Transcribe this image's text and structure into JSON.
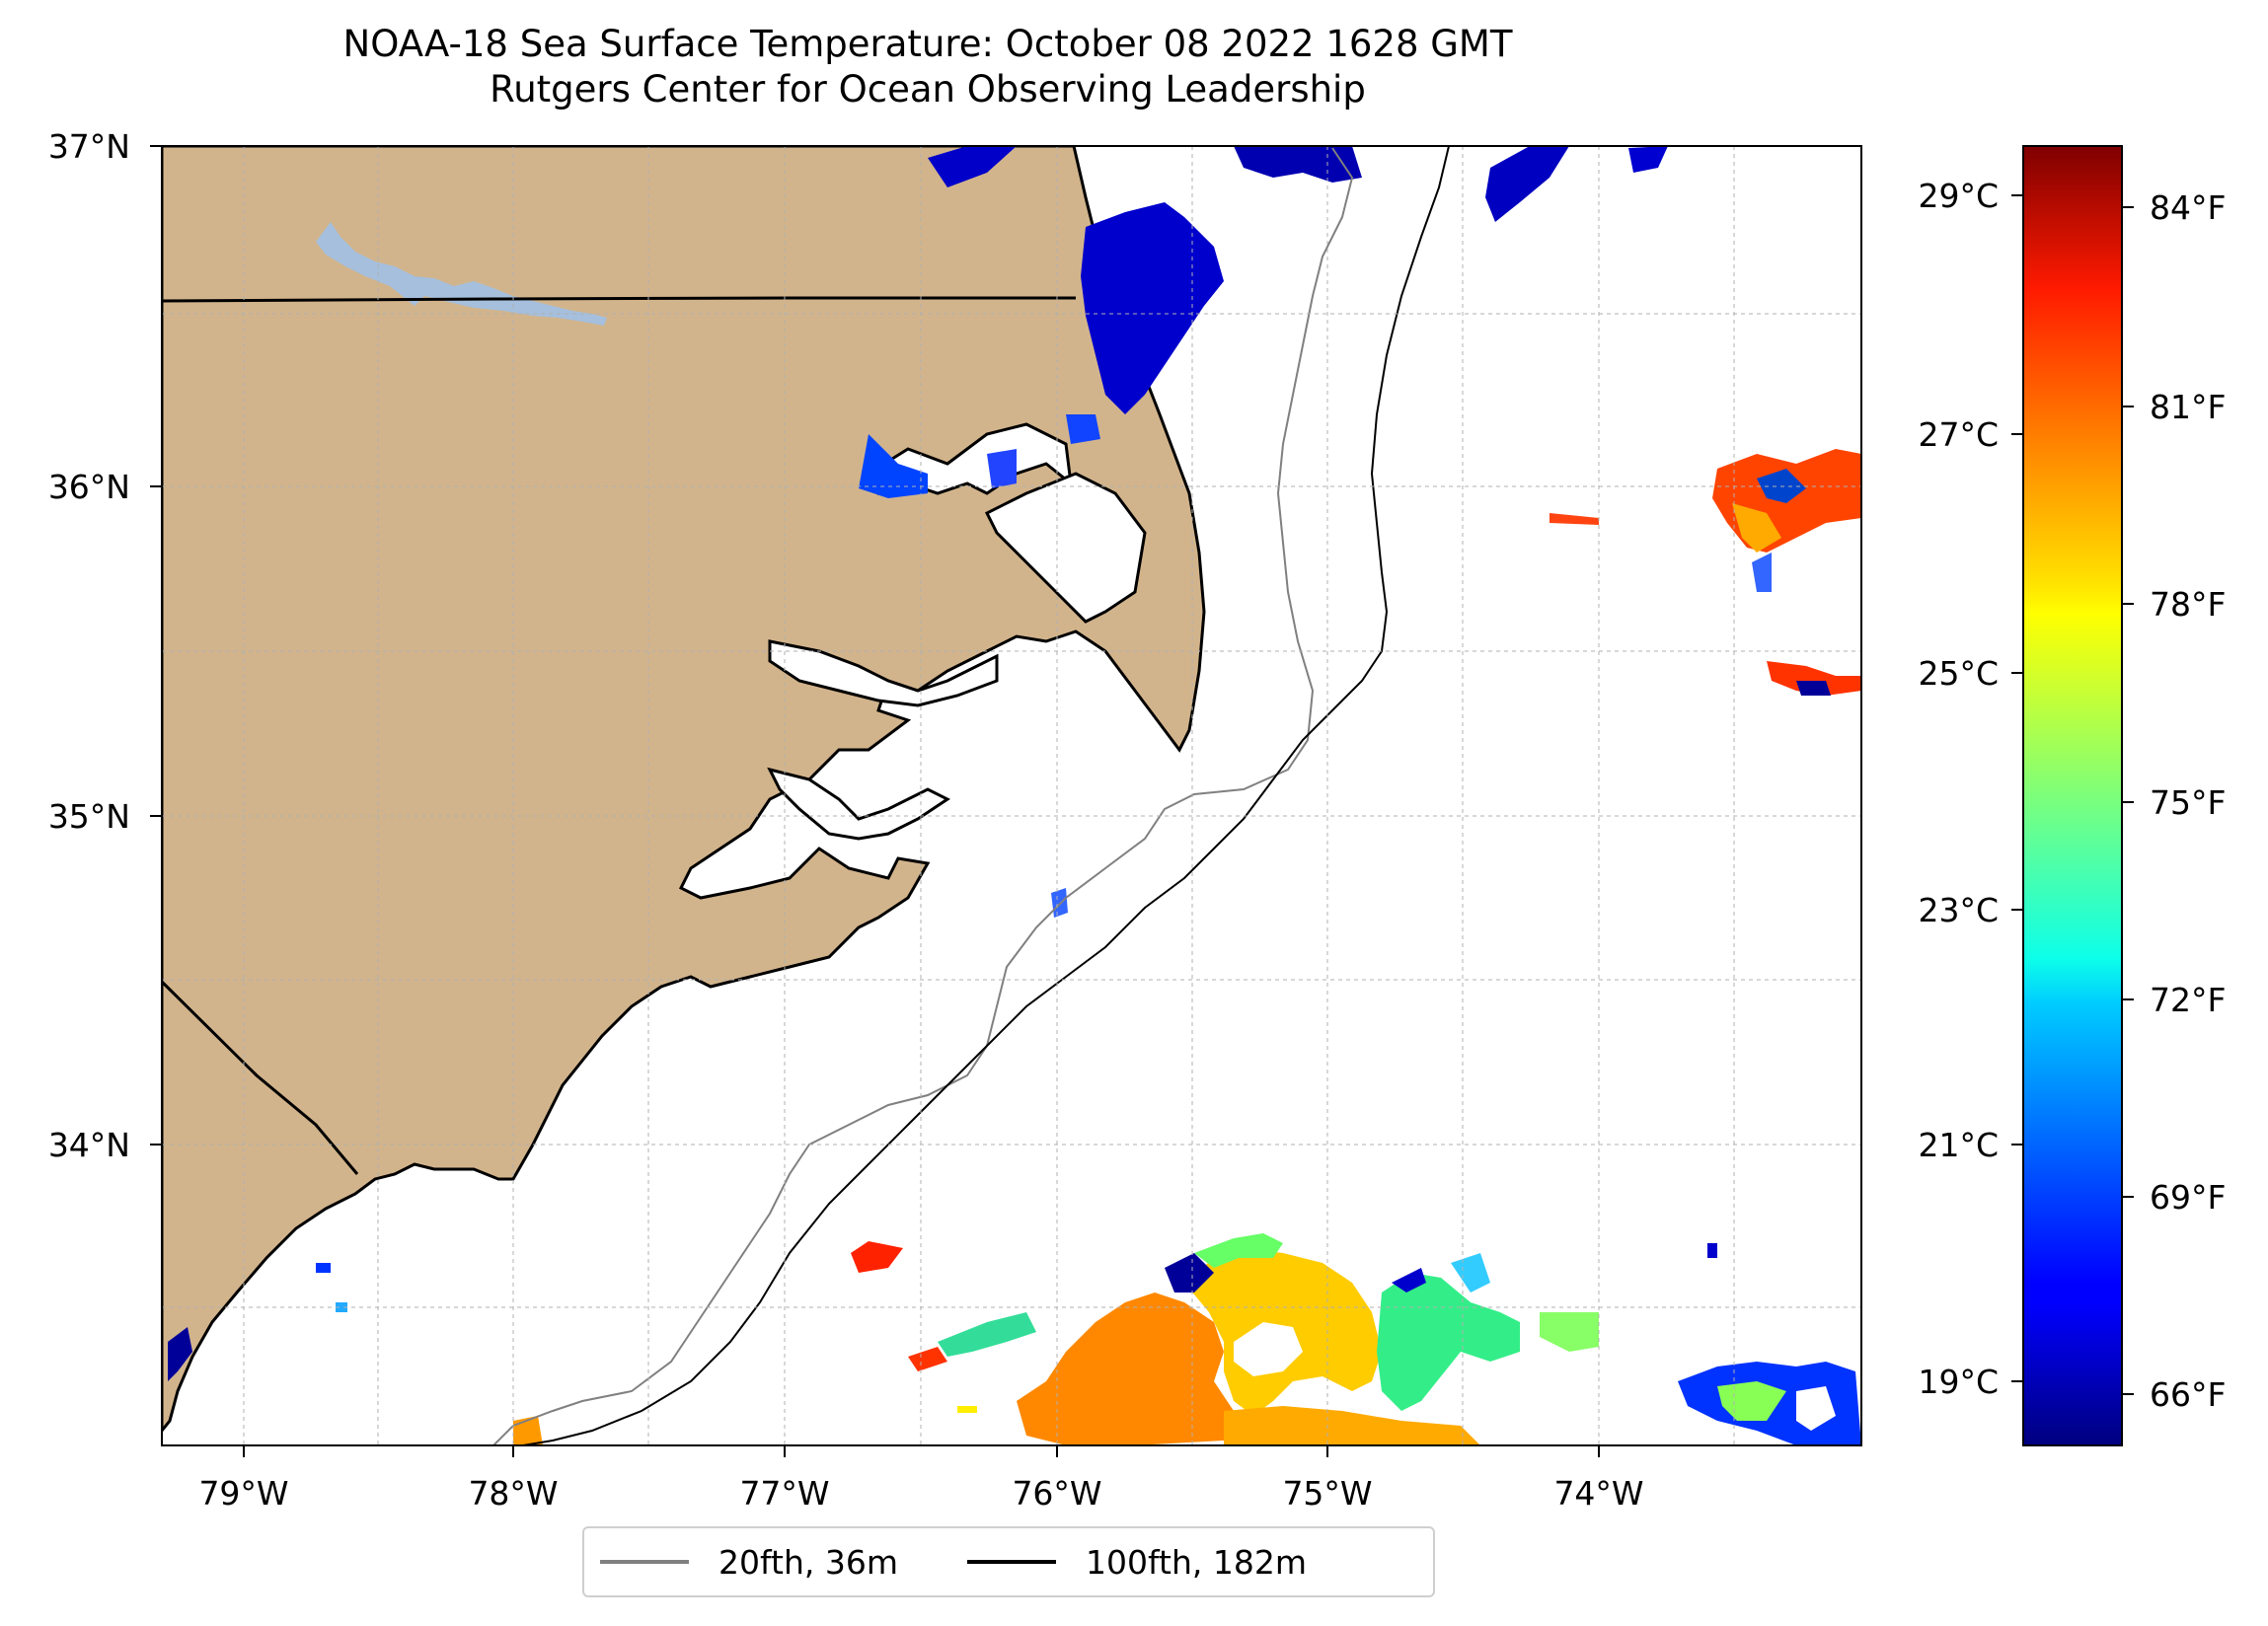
{
  "title": {
    "line1": "NOAA-18 Sea Surface Temperature: October 08 2022 1628 GMT",
    "line2": "Rutgers Center for Ocean Observing Leadership"
  },
  "map": {
    "lat_labels": [
      "37°N",
      "36°N",
      "35°N",
      "34°N"
    ],
    "lon_labels": [
      "79°W",
      "78°W",
      "77°W",
      "76°W",
      "75°W",
      "74°W"
    ],
    "land_color": "#d2b48c",
    "lake_color": "#a5bfdd",
    "bathy_20_color": "#808080",
    "bathy_100_color": "#000000"
  },
  "colorbar": {
    "celsius_labels": [
      "29°C",
      "27°C",
      "25°C",
      "23°C",
      "21°C",
      "19°C"
    ],
    "fahrenheit_labels": [
      "84°F",
      "81°F",
      "78°F",
      "75°F",
      "72°F",
      "69°F",
      "66°F"
    ],
    "colormap": "jet"
  },
  "legend": {
    "items": [
      {
        "label": "20fth, 36m",
        "color": "#808080"
      },
      {
        "label": "100fth, 182m",
        "color": "#000000"
      }
    ]
  }
}
